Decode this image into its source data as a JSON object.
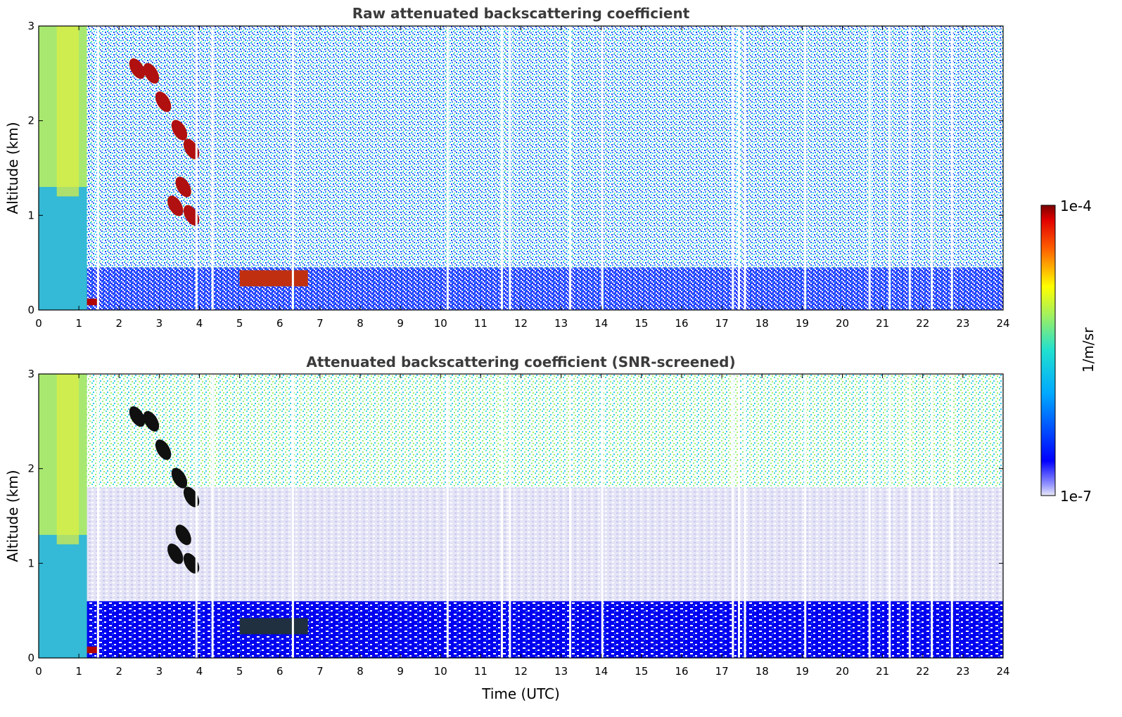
{
  "chart_data": [
    {
      "type": "heatmap",
      "title": "Raw attenuated backscattering coefficient",
      "xlabel": "",
      "ylabel": "Altitude (km)",
      "xlim": [
        0,
        24
      ],
      "ylim": [
        0,
        3
      ],
      "xticks": [
        0,
        1,
        2,
        3,
        4,
        5,
        6,
        7,
        8,
        9,
        10,
        11,
        12,
        13,
        14,
        15,
        16,
        17,
        18,
        19,
        20,
        21,
        22,
        23,
        24
      ],
      "yticks": [
        0,
        1,
        2,
        3
      ],
      "layers": [
        {
          "name": "near-surface layer",
          "x": [
            0,
            24
          ],
          "y": [
            0,
            0.45
          ],
          "level": "low-moderate"
        },
        {
          "name": "dense low cloud",
          "x": [
            0,
            1.5
          ],
          "y": [
            0.05,
            0.12
          ],
          "level": "high"
        },
        {
          "name": "precipitation column",
          "x": [
            0,
            1.2
          ],
          "y": [
            0,
            3
          ],
          "level": "moderate"
        },
        {
          "name": "descending cloud streak",
          "x": [
            2.4,
            4.0
          ],
          "y": [
            1.0,
            2.6
          ],
          "level": "high"
        },
        {
          "name": "boundary layer cloud",
          "x": [
            5.0,
            6.7
          ],
          "y": [
            0.25,
            0.42
          ],
          "level": "high"
        },
        {
          "name": "noise field",
          "x": [
            0,
            24
          ],
          "y": [
            0.45,
            3
          ],
          "level": "low"
        }
      ]
    },
    {
      "type": "heatmap",
      "title": "Attenuated backscattering coefficient (SNR-screened)",
      "xlabel": "Time (UTC)",
      "ylabel": "Altitude (km)",
      "xlim": [
        0,
        24
      ],
      "ylim": [
        0,
        3
      ],
      "xticks": [
        0,
        1,
        2,
        3,
        4,
        5,
        6,
        7,
        8,
        9,
        10,
        11,
        12,
        13,
        14,
        15,
        16,
        17,
        18,
        19,
        20,
        21,
        22,
        23,
        24
      ],
      "yticks": [
        0,
        1,
        2,
        3
      ],
      "layers": [
        {
          "name": "boundary layer",
          "x": [
            0,
            24
          ],
          "y": [
            0,
            0.6
          ],
          "level": "low-moderate"
        },
        {
          "name": "residual layer",
          "x": [
            0,
            24
          ],
          "y": [
            0.6,
            1.8
          ],
          "level": "low"
        },
        {
          "name": "dense low cloud",
          "x": [
            0,
            1.5
          ],
          "y": [
            0.05,
            0.12
          ],
          "level": "high"
        },
        {
          "name": "precipitation column",
          "x": [
            0,
            1.2
          ],
          "y": [
            0,
            3
          ],
          "level": "moderate"
        },
        {
          "name": "descending cloud streak",
          "x": [
            2.4,
            4.0
          ],
          "y": [
            1.0,
            2.6
          ],
          "level": "saturated"
        },
        {
          "name": "boundary layer cloud",
          "x": [
            5.0,
            6.7
          ],
          "y": [
            0.25,
            0.42
          ],
          "level": "saturated"
        }
      ]
    }
  ],
  "colorbar": {
    "label": "1/m/sr",
    "max_label": "1e-4",
    "min_label": "1e-7",
    "scale": "log"
  },
  "colors": {
    "low": "#1010ff",
    "mid": "#00c8ff",
    "high": "#ffff00",
    "max": "#8b0000"
  }
}
